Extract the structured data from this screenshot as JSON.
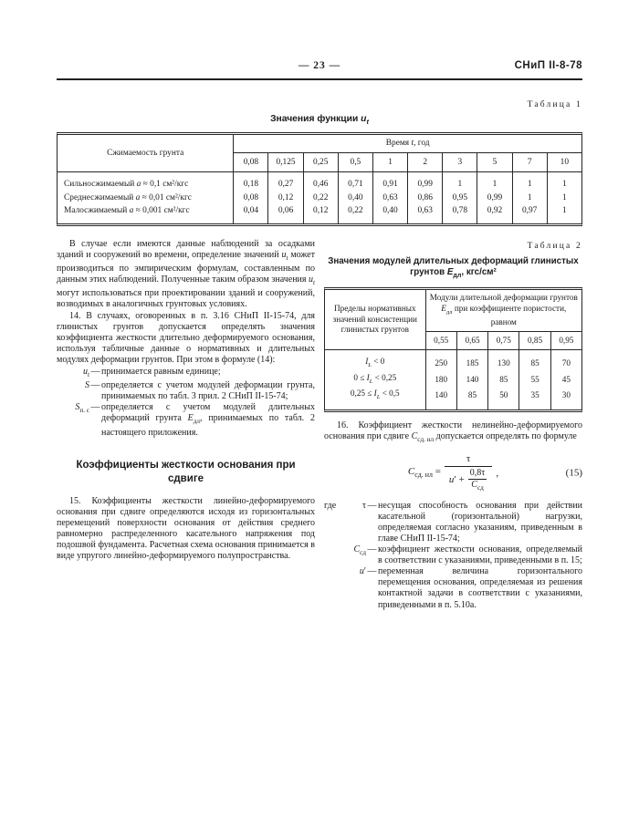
{
  "header": {
    "page_number": "— 23 —",
    "doc_code": "СНиП II-8-78"
  },
  "punct": {
    "def_dash": "—"
  },
  "table1": {
    "caption": "Таблица 1",
    "title": "Значения функции <i>u<sub>t</sub></i>",
    "col1_header": "Сжимаемость грунта",
    "span_header": "Время <i>t</i>, год",
    "time_cols": [
      "0,08",
      "0,125",
      "0,25",
      "0,5",
      "1",
      "2",
      "3",
      "5",
      "7",
      "10"
    ],
    "rows": [
      {
        "label": "Сильносжимаемый <i>a</i> ≈ 0,1 см²/кгс",
        "values": [
          "0,18",
          "0,27",
          "0,46",
          "0,71",
          "0,91",
          "0,99",
          "1",
          "1",
          "1",
          "1"
        ]
      },
      {
        "label": "Среднесжимаемый <i>a</i> ≈ 0,01 см²/кгс",
        "values": [
          "0,08",
          "0,12",
          "0,22",
          "0,40",
          "0,63",
          "0,86",
          "0,95",
          "0,99",
          "1",
          "1"
        ]
      },
      {
        "label": "Малосжимаемый <i>a</i> ≈ 0,001 см²/кгс",
        "values": [
          "0,04",
          "0,06",
          "0,12",
          "0,22",
          "0,40",
          "0,63",
          "0,78",
          "0,92",
          "0,97",
          "1"
        ]
      }
    ]
  },
  "left_column": {
    "para1": "В случае если имеются данные наблюдений за осадками зданий и сооружений во времени, определение значений <i>u<sub>t</sub></i> может производиться по эмпирическим формулам, составленным по данным этих наблюдений. Полученные таким образом значения <i>u<sub>t</sub></i> могут использоваться при проектировании зданий и сооружений, возводимых в аналогичных грунтовых условиях.",
    "para2": "14. В случаях, оговоренных в п. 3.16 СНиП II-15-74, для глинистых грунтов допускается определять значения коэффициента жесткости длительно деформируемого основания, используя табличные данные о нормативных и длительных модулях деформации грунтов. При этом в формуле (14):",
    "defs": [
      {
        "term": "<i>u<sub>t</sub></i>",
        "definition": "принимается равным единице;"
      },
      {
        "term": "<i>S</i>",
        "definition": "определяется с учетом модулей деформации грунта, принимаемых по табл. 3 прил. 2 СНиП II-15-74;"
      },
      {
        "term": "<i>S</i><sub>п. с</sub>",
        "definition": "определяется с учетом модулей длительных деформаций грунта <i>E</i><sub>дл</sub>, принимаемых по табл. 2 настоящего приложения."
      }
    ],
    "section_heading": "Коэффициенты жесткости основания при сдвиге",
    "para15": "15. Коэффициенты жесткости линейно-деформируемого основания при сдвиге определяются исходя из горизонтальных перемещений поверхности основания от действия среднего равномерно распределенного касательного напряжения под подошвой фундамента. Расчетная схема основания принимается в виде упругого линейно-деформируемого полупространства."
  },
  "table2": {
    "caption": "Таблица 2",
    "title": "Значения модулей длительных деформаций глинистых грунтов <i>E</i><sub>дл</sub>, кгс/см²",
    "col1_header": "Пределы нормативных значений консистенции глинистых грунтов",
    "span_header": "Модули длительной деформации грунтов <i>E</i><sub>дл</sub> при коэффициенте пористости, равном",
    "porosity_cols": [
      "0,55",
      "0,65",
      "0,75",
      "0,85",
      "0,95"
    ],
    "rows": [
      {
        "label": "<i>I<sub>L</sub></i> &lt; 0",
        "values": [
          "250",
          "185",
          "130",
          "85",
          "70"
        ]
      },
      {
        "label": "0 ≤ <i>I<sub>L</sub></i> &lt; 0,25",
        "values": [
          "180",
          "140",
          "85",
          "55",
          "45"
        ]
      },
      {
        "label": "0,25 ≤ <i>I<sub>L</sub></i> &lt; 0,5",
        "values": [
          "140",
          "85",
          "50",
          "35",
          "30"
        ]
      }
    ]
  },
  "right_column": {
    "para16": "16. Коэффициент жесткости нелинейно-деформируемого основания при сдвиге <i>C</i><sub>сд. нл</sub> допускается определять по формуле",
    "formula": {
      "lhs": "<i>C</i><sub>сд. нл</sub> =",
      "numerator": "τ",
      "den_pre": "<i>u</i>′ +",
      "inner_numerator": "0,8τ",
      "inner_denominator": "<i>C</i><sub>сд</sub>",
      "trailing": ",",
      "number": "(15)"
    },
    "where_label": "где",
    "where_defs": [
      {
        "term": "τ",
        "definition": "несущая способность основания при действии касательной (горизонтальной) нагрузки, определяемая согласно указаниям, приведенным в главе СНиП II-15-74;"
      },
      {
        "term": "<i>C</i><sub>сд</sub>",
        "definition": "коэффициент жесткости основания, определяемый в соответствии с указаниями, приведенными в п. 15;"
      },
      {
        "term": "<i>u</i>′",
        "definition": "переменная величина горизонтального перемещения основания, определяемая из решения контактной задачи в соответствии с указаниями, приведенными в п. 5.10а."
      }
    ]
  }
}
